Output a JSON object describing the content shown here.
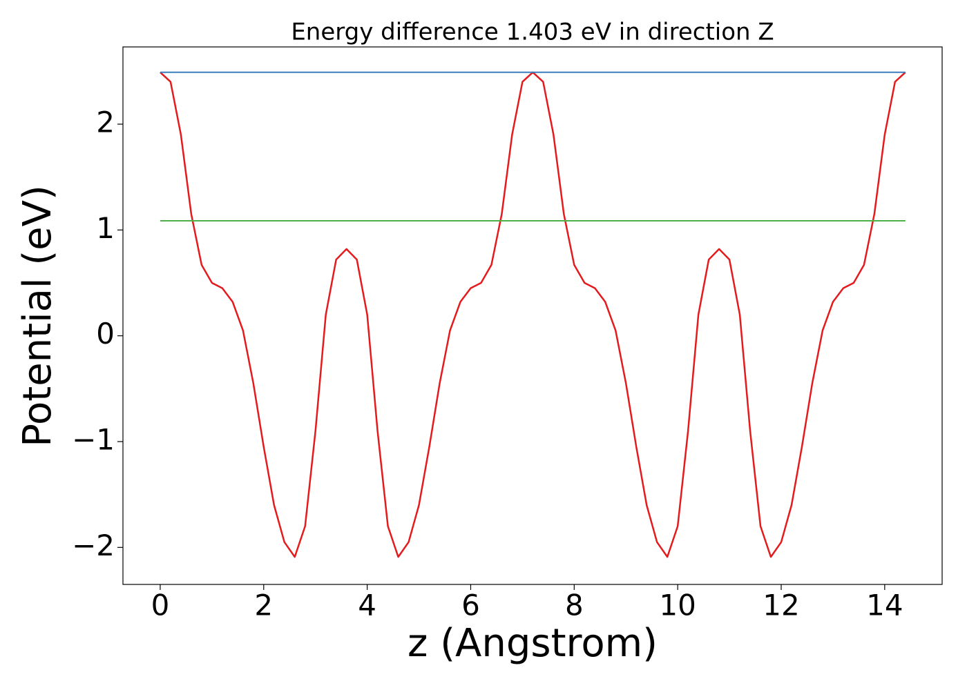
{
  "chart_data": {
    "type": "line",
    "title": "Energy difference 1.403 eV in direction Z",
    "xlabel": "z (Angstrom)",
    "ylabel": "Potential (eV)",
    "xlim": [
      -0.72,
      15.11
    ],
    "ylim": [
      -2.35,
      2.73
    ],
    "xticks": [
      0,
      2,
      4,
      6,
      8,
      10,
      12,
      14
    ],
    "yticks": [
      {
        "value": -2,
        "label": "−2"
      },
      {
        "value": -1,
        "label": "−1"
      },
      0,
      1,
      2
    ],
    "grid": false,
    "series": [
      {
        "color": "#e41a1c",
        "x": [
          0,
          0.2,
          0.4,
          0.6,
          0.8,
          1.0,
          1.2,
          1.4,
          1.6,
          1.8,
          2.0,
          2.2,
          2.4,
          2.6,
          2.8,
          3.0,
          3.2,
          3.4,
          3.6,
          3.8,
          4.0,
          4.2,
          4.4,
          4.6,
          4.8,
          5.0,
          5.2,
          5.4,
          5.6,
          5.8,
          6.0,
          6.2,
          6.4,
          6.6,
          6.8,
          7.0,
          7.2,
          7.4,
          7.6,
          7.8,
          8.0,
          8.2,
          8.4,
          8.6,
          8.8,
          9.0,
          9.2,
          9.4,
          9.6,
          9.8,
          10.0,
          10.2,
          10.4,
          10.6,
          10.8,
          11.0,
          11.2,
          11.4,
          11.6,
          11.8,
          12.0,
          12.2,
          12.4,
          12.6,
          12.8,
          13.0,
          13.2,
          13.4,
          13.6,
          13.8,
          14.0,
          14.2,
          14.4
        ],
        "values": [
          2.49,
          2.4,
          1.9,
          1.15,
          0.67,
          0.5,
          0.45,
          0.32,
          0.05,
          -0.45,
          -1.05,
          -1.6,
          -1.95,
          -2.09,
          -1.8,
          -0.9,
          0.2,
          0.72,
          0.82,
          0.72,
          0.2,
          -0.9,
          -1.8,
          -2.09,
          -1.95,
          -1.6,
          -1.05,
          -0.45,
          0.05,
          0.32,
          0.45,
          0.5,
          0.67,
          1.15,
          1.9,
          2.4,
          2.49,
          2.4,
          1.9,
          1.15,
          0.67,
          0.5,
          0.45,
          0.32,
          0.05,
          -0.45,
          -1.05,
          -1.6,
          -1.95,
          -2.09,
          -1.8,
          -0.9,
          0.2,
          0.72,
          0.82,
          0.72,
          0.2,
          -0.9,
          -1.8,
          -2.09,
          -1.95,
          -1.6,
          -1.05,
          -0.45,
          0.05,
          0.32,
          0.45,
          0.5,
          0.67,
          1.15,
          1.9,
          2.4,
          2.49
        ]
      },
      {
        "color": "#3a7fc0",
        "x": [
          0,
          14.4
        ],
        "values": [
          2.49,
          2.49
        ]
      },
      {
        "color": "#4daf4a",
        "x": [
          0,
          14.4
        ],
        "values": [
          1.087,
          1.087
        ]
      }
    ]
  }
}
